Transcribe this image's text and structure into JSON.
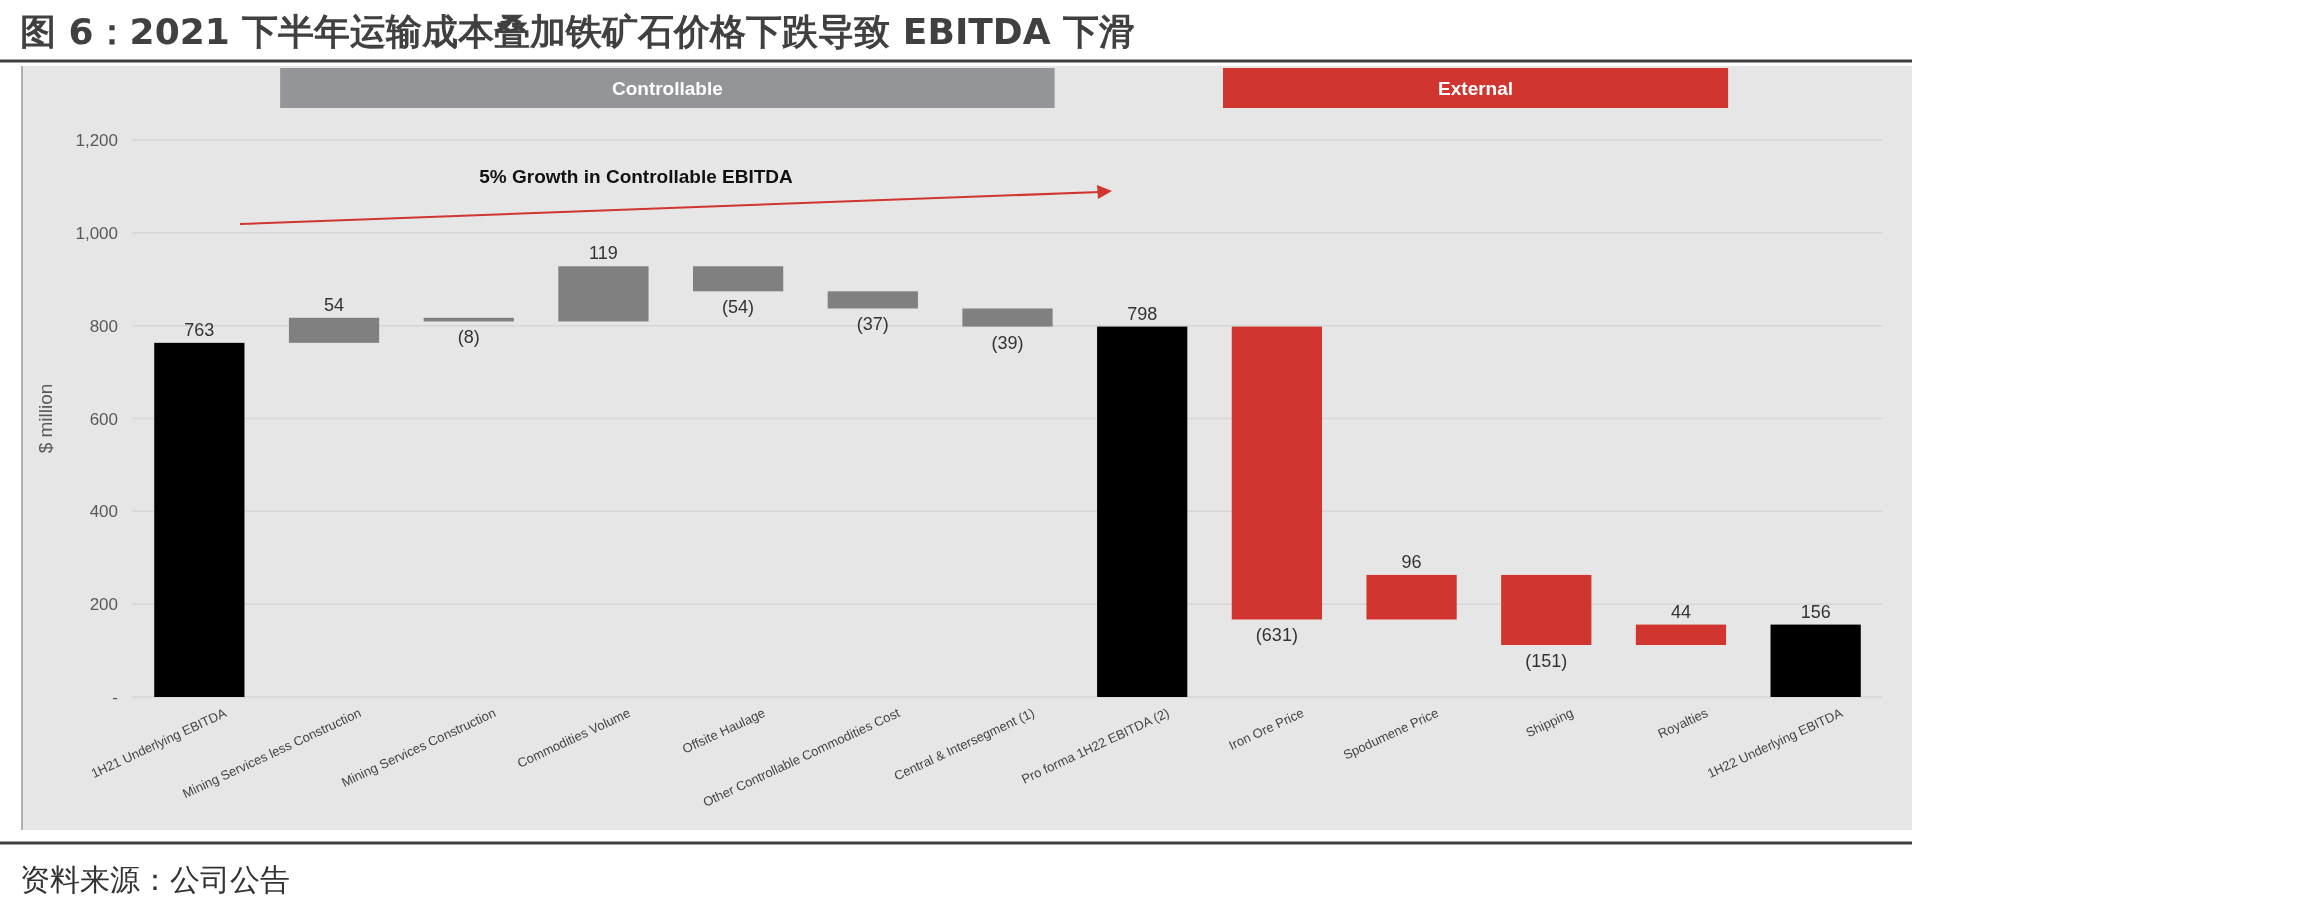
{
  "chart_data": {
    "type": "bar",
    "title": "图 6：2021 下半年运输成本叠加铁矿石价格下跌导致 EBITDA 下滑",
    "ylabel": "$ million",
    "categories": [
      "1H21 Underlying EBITDA",
      "Mining Services less Construction",
      "Mining Services Construction",
      "Commodities Volume",
      "Offsite Haulage",
      "Other Controllable Commodities Cost",
      "Central & Intersegment (1)",
      "Pro forma 1H22 EBITDA (2)",
      "Iron Ore Price",
      "Spodumene Price",
      "Shipping",
      "Royalties",
      "1H22 Underlying EBITDA"
    ],
    "values": [
      763,
      54,
      -8,
      119,
      -54,
      -37,
      -39,
      798,
      -631,
      96,
      -151,
      44,
      156
    ],
    "base": [
      0,
      763,
      817,
      809,
      928,
      874,
      837,
      0,
      798,
      167,
      263,
      112,
      0
    ],
    "colors": [
      "#000000",
      "#808080",
      "#808080",
      "#808080",
      "#808080",
      "#808080",
      "#808080",
      "#000000",
      "#d03530",
      "#d03530",
      "#d03530",
      "#d03530",
      "#000000"
    ],
    "value_labels": [
      "763",
      "54",
      "(8)",
      "119",
      "(54)",
      "(37)",
      "(39)",
      "798",
      "(631)",
      "96",
      "(151)",
      "44",
      "156"
    ],
    "ylim": [
      0,
      1200
    ],
    "yticks": [
      {
        "value": 0,
        "label": "-"
      },
      200,
      400,
      600,
      800,
      {
        "value": 1000,
        "label": "1,000"
      },
      {
        "value": 1200,
        "label": "1,200"
      }
    ],
    "grid": "y",
    "annotations": [
      "Controllable",
      "External",
      "5% Growth in Controllable EBITDA",
      "资料来源：公司公告"
    ]
  }
}
